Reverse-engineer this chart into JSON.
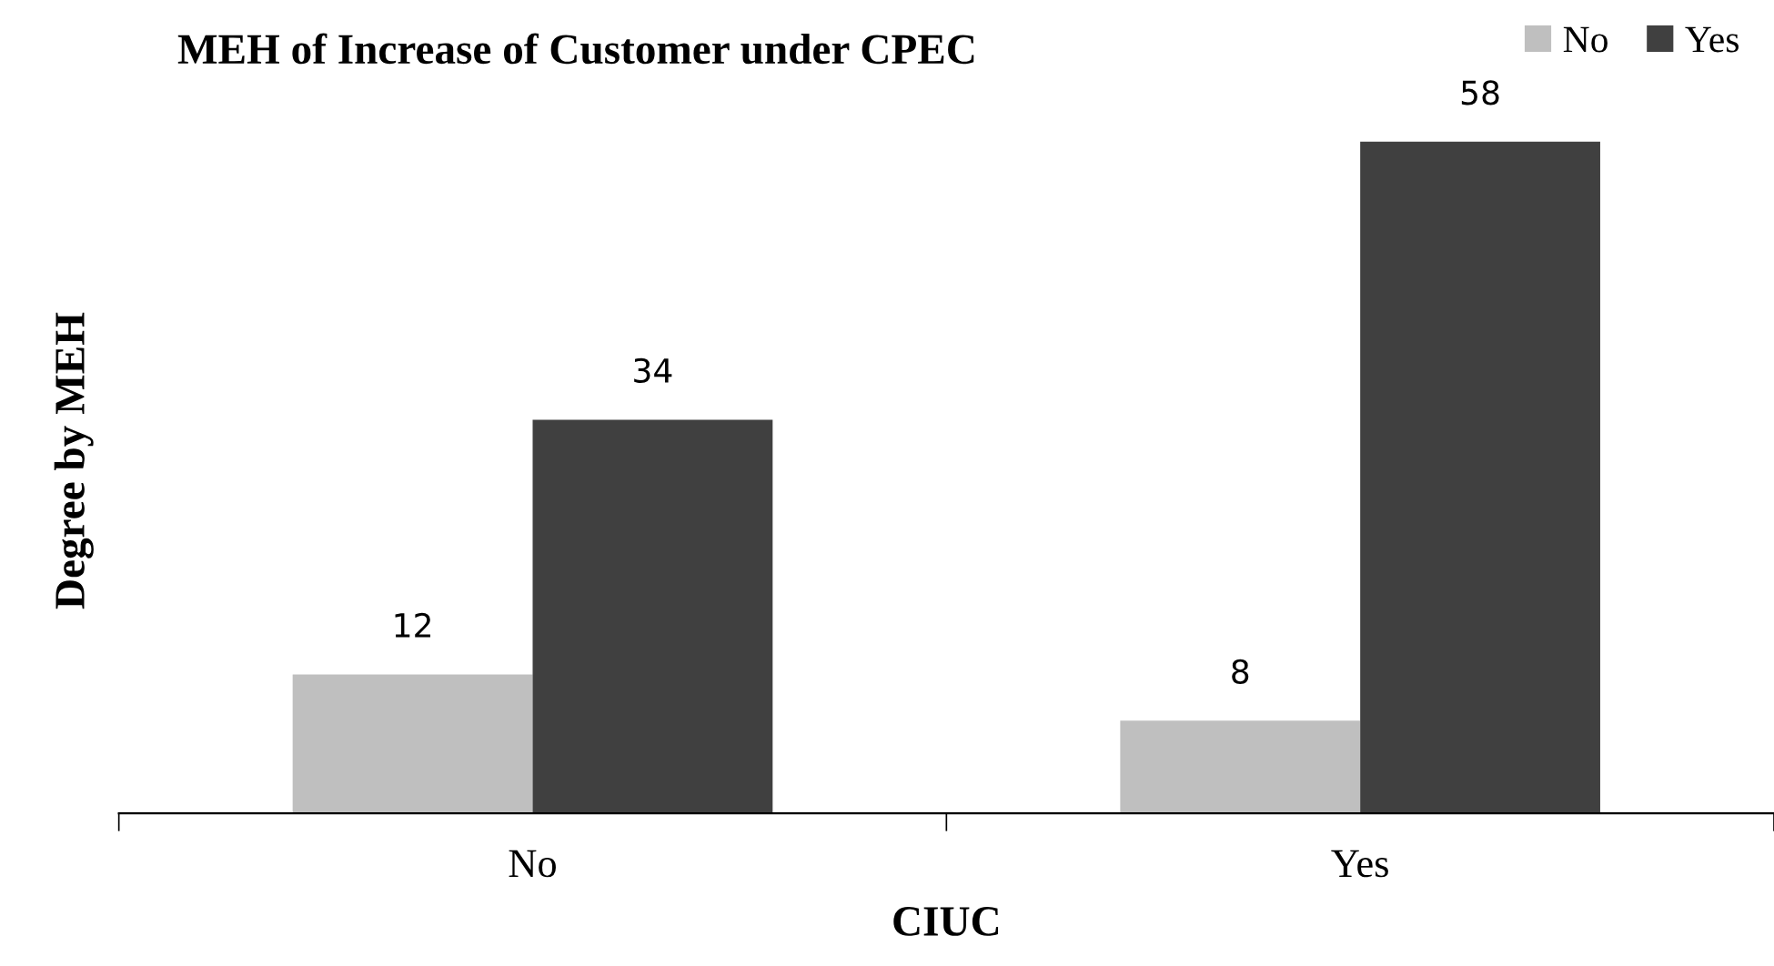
{
  "chart_data": {
    "type": "bar",
    "title": "MEH of Increase of Customer under CPEC",
    "xlabel": "CIUC",
    "ylabel": "Degree by MEH",
    "categories": [
      "No",
      "Yes"
    ],
    "series": [
      {
        "name": "No",
        "color": "#bfbfbf",
        "values": [
          12,
          8
        ]
      },
      {
        "name": "Yes",
        "color": "#404040",
        "values": [
          34,
          58
        ]
      }
    ],
    "data_labels": true,
    "legend": "top right",
    "grid": false,
    "tick_labels": "x"
  }
}
